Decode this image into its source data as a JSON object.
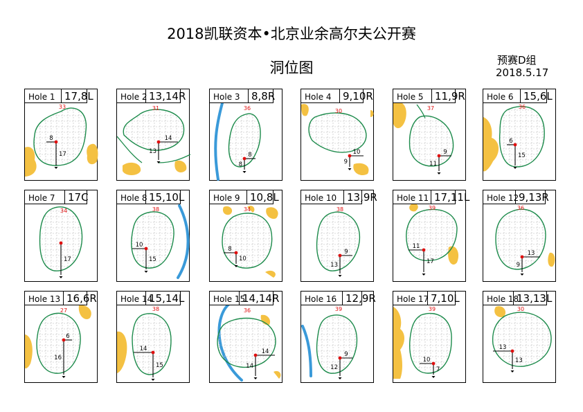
{
  "title": "2018凯联资本•北京业余高尔夫公开赛",
  "subtitle": "洞位图",
  "group": "预赛D组",
  "date": "2018.5.17",
  "colors": {
    "green_outline": "#1b8a4a",
    "bunker": "#f4c142",
    "water": "#3a9ad9",
    "pin": "#e01010",
    "grid": "#b8b8b8",
    "depth": "#e01010"
  },
  "holes": [
    {
      "name": "Hole 1",
      "position": "17,8L",
      "depth": "33",
      "down": "17",
      "side": "8",
      "side_dir": "L"
    },
    {
      "name": "Hole 2",
      "position": "13,14R",
      "depth": "31",
      "down": "13",
      "side": "14",
      "side_dir": "R"
    },
    {
      "name": "Hole 3",
      "position": "8,8R",
      "depth": "36",
      "down": "8",
      "side": "8",
      "side_dir": "R"
    },
    {
      "name": "Hole 4",
      "position": "9,10R",
      "depth": "30",
      "down": "9",
      "side": "10",
      "side_dir": "R"
    },
    {
      "name": "Hole 5",
      "position": "11,9R",
      "depth": "37",
      "down": "11",
      "side": "9",
      "side_dir": "R"
    },
    {
      "name": "Hole 6",
      "position": "15,6L",
      "depth": "36",
      "down": "15",
      "side": "6",
      "side_dir": "L"
    },
    {
      "name": "Hole 7",
      "position": "17C",
      "depth": "34",
      "down": "17",
      "side": "",
      "side_dir": "C"
    },
    {
      "name": "Hole 8",
      "position": "15,10L",
      "depth": "38",
      "down": "15",
      "side": "10",
      "side_dir": "L"
    },
    {
      "name": "Hole 9",
      "position": "10,8L",
      "depth": "34",
      "down": "10",
      "side": "8",
      "side_dir": "L"
    },
    {
      "name": "Hole 10",
      "position": "13,9R",
      "depth": "38",
      "down": "13",
      "side": "9",
      "side_dir": "R"
    },
    {
      "name": "Hole 11",
      "position": "17,11L",
      "depth": "39",
      "down": "17",
      "side": "11",
      "side_dir": "L"
    },
    {
      "name": "Hole 12",
      "position": "9,13R",
      "depth": "36",
      "down": "9",
      "side": "13",
      "side_dir": "R"
    },
    {
      "name": "Hole 13",
      "position": "16,6R",
      "depth": "27",
      "down": "16",
      "side": "6",
      "side_dir": "R"
    },
    {
      "name": "Hole 14",
      "position": "15,14L",
      "depth": "38",
      "down": "15",
      "side": "14",
      "side_dir": "L"
    },
    {
      "name": "Hole 15",
      "position": "14,14R",
      "depth": "36",
      "down": "14",
      "side": "14",
      "side_dir": "R"
    },
    {
      "name": "Hole 16",
      "position": "12,9R",
      "depth": "39",
      "down": "12",
      "side": "9",
      "side_dir": "R"
    },
    {
      "name": "Hole 17",
      "position": "7,10L",
      "depth": "39",
      "down": "7",
      "side": "10",
      "side_dir": "L"
    },
    {
      "name": "Hole 18",
      "position": "13,13L",
      "depth": "30",
      "down": "13",
      "side": "13",
      "side_dir": "L"
    }
  ]
}
